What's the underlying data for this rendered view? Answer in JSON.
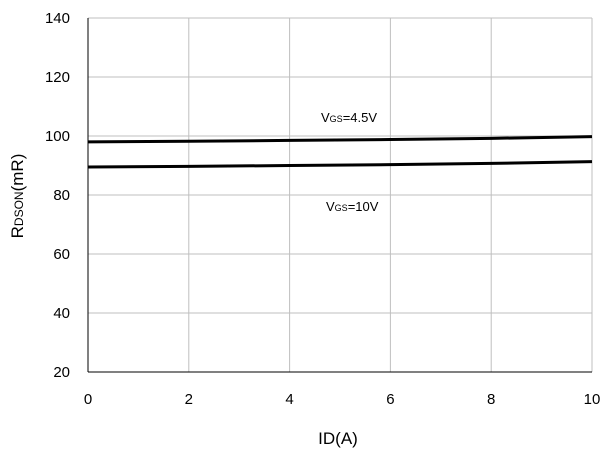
{
  "chart_data": {
    "type": "line",
    "title": "",
    "xlabel": "ID(A)",
    "ylabel": {
      "main": "R",
      "sub": "DSON",
      "rest": "(mR)"
    },
    "xlim": [
      0,
      10
    ],
    "ylim": [
      20,
      140
    ],
    "xticks": [
      0,
      2,
      4,
      6,
      8,
      10
    ],
    "yticks": [
      20,
      40,
      60,
      80,
      100,
      120,
      140
    ],
    "grid": true,
    "legend": "none",
    "series": [
      {
        "name": "VGS=4.5V",
        "label": {
          "main": "V",
          "sub": "GS",
          "rest": "=4.5V"
        },
        "x": [
          0,
          2,
          4,
          6,
          8,
          10
        ],
        "y": [
          98,
          98.2,
          98.5,
          98.8,
          99.2,
          99.8
        ]
      },
      {
        "name": "VGS=10V",
        "label": {
          "main": "V",
          "sub": "GS",
          "rest": "=10V"
        },
        "x": [
          0,
          2,
          4,
          6,
          8,
          10
        ],
        "y": [
          89.5,
          89.7,
          90,
          90.3,
          90.7,
          91.3
        ]
      }
    ],
    "colors": {
      "line": "#000000",
      "grid": "#bfbfbf",
      "axis": "#000000"
    }
  }
}
